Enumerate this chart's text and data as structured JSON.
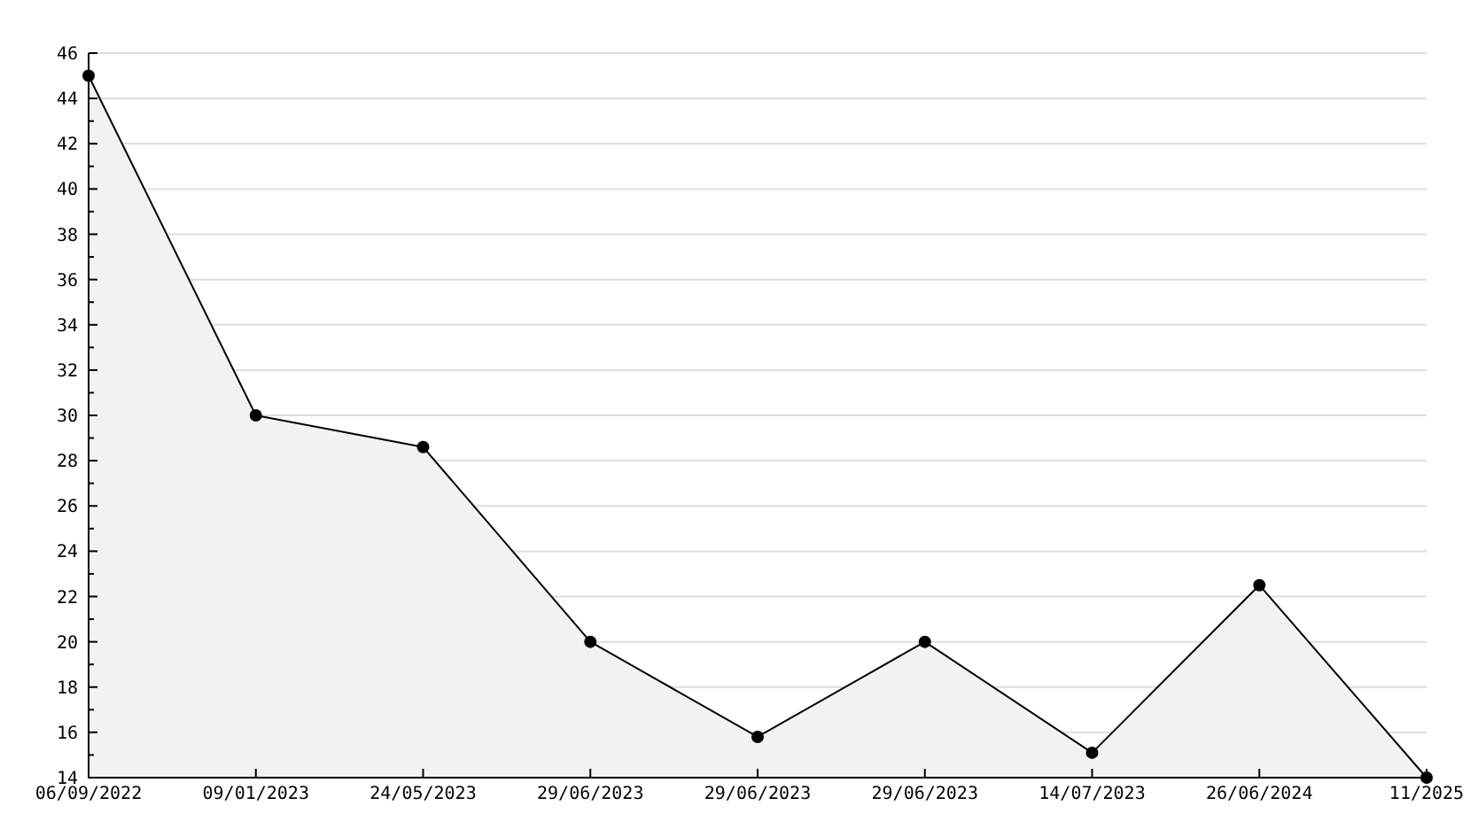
{
  "chart_data": {
    "type": "area",
    "categories": [
      "06/09/2022",
      "09/01/2023",
      "24/05/2023",
      "29/06/2023",
      "29/06/2023",
      "29/06/2023",
      "14/07/2023",
      "26/06/2024",
      "11/2025"
    ],
    "series": [
      {
        "color": "#000000",
        "values": [
          45,
          30,
          28.6,
          20,
          15.8,
          20,
          15.1,
          22.5,
          14
        ]
      }
    ],
    "ylim": [
      14,
      46
    ],
    "yticks": [
      14,
      {
        "value": 15,
        "label": null
      },
      16,
      {
        "value": 17,
        "label": null
      },
      18,
      {
        "value": 19,
        "label": null
      },
      20,
      {
        "value": 21,
        "label": null
      },
      22,
      {
        "value": 23,
        "label": null
      },
      24,
      {
        "value": 25,
        "label": null
      },
      26,
      {
        "value": 27,
        "label": null
      },
      28,
      {
        "value": 29,
        "label": null
      },
      30,
      {
        "value": 31,
        "label": null
      },
      32,
      {
        "value": 33,
        "label": null
      },
      34,
      {
        "value": 35,
        "label": null
      },
      36,
      {
        "value": 37,
        "label": null
      },
      38,
      {
        "value": 39,
        "label": null
      },
      40,
      {
        "value": 41,
        "label": null
      },
      42,
      {
        "value": 43,
        "label": null
      },
      44,
      {
        "value": 45,
        "label": null
      },
      46
    ],
    "grid": "y",
    "marker": "circle",
    "line_style": "solid"
  }
}
